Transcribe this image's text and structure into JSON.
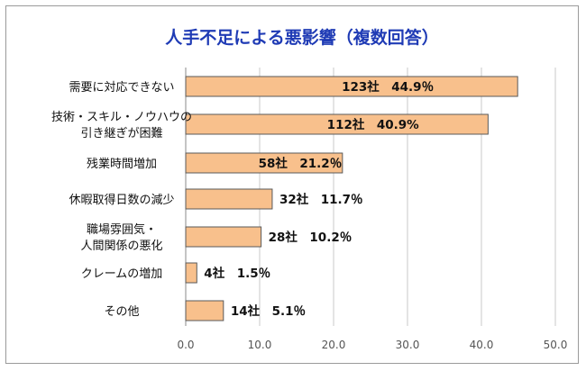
{
  "chart_data": {
    "type": "bar",
    "orientation": "horizontal",
    "title": "人手不足による悪影響（複数回答）",
    "categories": [
      "需要に対応できない",
      "技術・スキル・ノウハウの\n引き継ぎが困難",
      "残業時間増加",
      "休暇取得日数の減少",
      "職場雰囲気・\n人間関係の悪化",
      "クレームの増加",
      "その他"
    ],
    "values": [
      44.9,
      40.9,
      21.2,
      11.7,
      10.2,
      1.5,
      5.1
    ],
    "data_labels": [
      "123社　44.9％",
      "112社　40.9%",
      "58社　21.2％",
      "32社　11.7％",
      "28社　10.2％",
      "4社　1.5％",
      "14社　5.1％"
    ],
    "xlim": [
      0,
      50
    ],
    "x_ticks": [
      "0.0",
      "10.0",
      "20.0",
      "30.0",
      "40.0",
      "50.0"
    ],
    "grid": true,
    "legend": "none",
    "colors": {
      "bar_fill": "#F8C08C",
      "bar_stroke": "#5a5a5a",
      "title": "#1F3BB5",
      "grid": "#c8c8c8"
    }
  }
}
